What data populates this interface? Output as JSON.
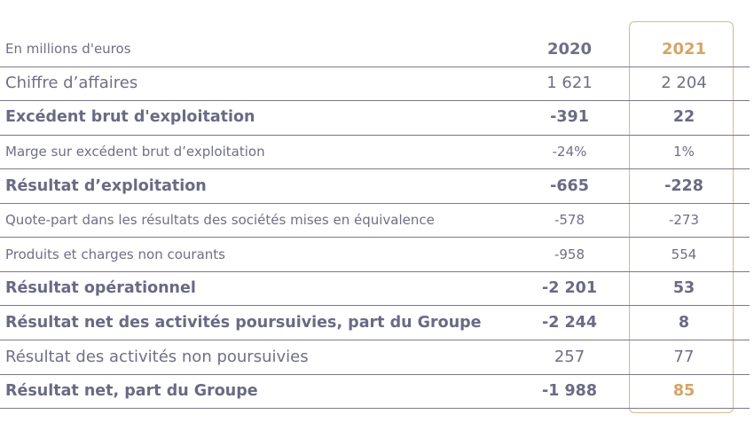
{
  "header": {
    "unit_label": "En millions d'euros",
    "col_2020": "2020",
    "col_2021": "2021"
  },
  "colors": {
    "text": "#6f6f86",
    "highlight": "#d4a465",
    "border": "#d8b98a"
  },
  "rows": [
    {
      "label": "Chiffre d’affaires",
      "v2020": "1 621",
      "v2021": "2 204",
      "style": "m"
    },
    {
      "label": "Excédent brut d'exploitation",
      "v2020": "-391",
      "v2021": "22",
      "style": "b"
    },
    {
      "label": "Marge sur excédent brut d’exploitation",
      "v2020": "-24%",
      "v2021": "1%",
      "style": "s"
    },
    {
      "label": "Résultat d’exploitation",
      "v2020": "-665",
      "v2021": "-228",
      "style": "b"
    },
    {
      "label": "Quote-part dans les résultats des sociétés mises en équivalence",
      "v2020": "-578",
      "v2021": "-273",
      "style": "s"
    },
    {
      "label": "Produits et charges non courants",
      "v2020": "-958",
      "v2021": "554",
      "style": "s"
    },
    {
      "label": "Résultat opérationnel",
      "v2020": "-2 201",
      "v2021": "53",
      "style": "b"
    },
    {
      "label": "Résultat net des activités poursuivies, part du Groupe",
      "v2020": "-2 244",
      "v2021": "8",
      "style": "b"
    },
    {
      "label": "Résultat des activités non poursuivies",
      "v2020": "257",
      "v2021": "77",
      "style": "m"
    },
    {
      "label": "Résultat net, part du Groupe",
      "v2020": "-1 988",
      "v2021": "85",
      "style": "b"
    }
  ]
}
